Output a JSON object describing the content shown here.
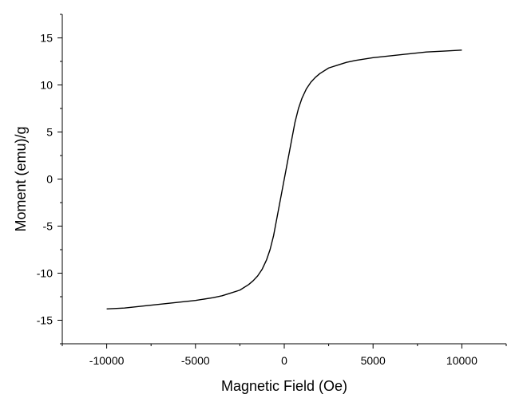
{
  "chart_data": {
    "type": "line",
    "title": "",
    "xlabel": "Magnetic Field (Oe)",
    "ylabel": "Moment (emu)/g",
    "xlim": [
      -12500,
      12500
    ],
    "ylim": [
      -17.5,
      17.5
    ],
    "x_ticks": [
      -10000,
      -5000,
      0,
      5000,
      10000
    ],
    "x_tick_labels": [
      "-10000",
      "-5000",
      "0",
      "5000",
      "10000"
    ],
    "y_ticks": [
      -15,
      -10,
      -5,
      0,
      5,
      10,
      15
    ],
    "y_tick_labels": [
      "-15",
      "-10",
      "-5",
      "0",
      "5",
      "10",
      "15"
    ],
    "grid": false,
    "legend": "none",
    "line_color": "#000000",
    "series": [
      {
        "x": [
          -10000,
          -9000,
          -8000,
          -7000,
          -6000,
          -5000,
          -4000,
          -3500,
          -3000,
          -2500,
          -2000,
          -1750,
          -1500,
          -1250,
          -1000,
          -800,
          -600,
          -500,
          -400,
          -300,
          -200,
          -150,
          -100,
          -50,
          0,
          50,
          100,
          150,
          200,
          300,
          400,
          500,
          600,
          800,
          1000,
          1250,
          1500,
          1750,
          2000,
          2500,
          3000,
          3500,
          4000,
          5000,
          6000,
          7000,
          8000,
          9000,
          10000
        ],
        "y": [
          -13.8,
          -13.7,
          -13.5,
          -13.3,
          -13.1,
          -12.9,
          -12.6,
          -12.4,
          -12.1,
          -11.8,
          -11.2,
          -10.8,
          -10.3,
          -9.6,
          -8.6,
          -7.5,
          -6.0,
          -5.0,
          -4.0,
          -3.0,
          -2.0,
          -1.5,
          -1.0,
          -0.5,
          0.0,
          0.5,
          1.0,
          1.5,
          2.0,
          3.0,
          4.0,
          5.0,
          6.0,
          7.5,
          8.6,
          9.6,
          10.3,
          10.8,
          11.2,
          11.8,
          12.1,
          12.4,
          12.6,
          12.9,
          13.1,
          13.3,
          13.5,
          13.6,
          13.7
        ]
      }
    ]
  }
}
